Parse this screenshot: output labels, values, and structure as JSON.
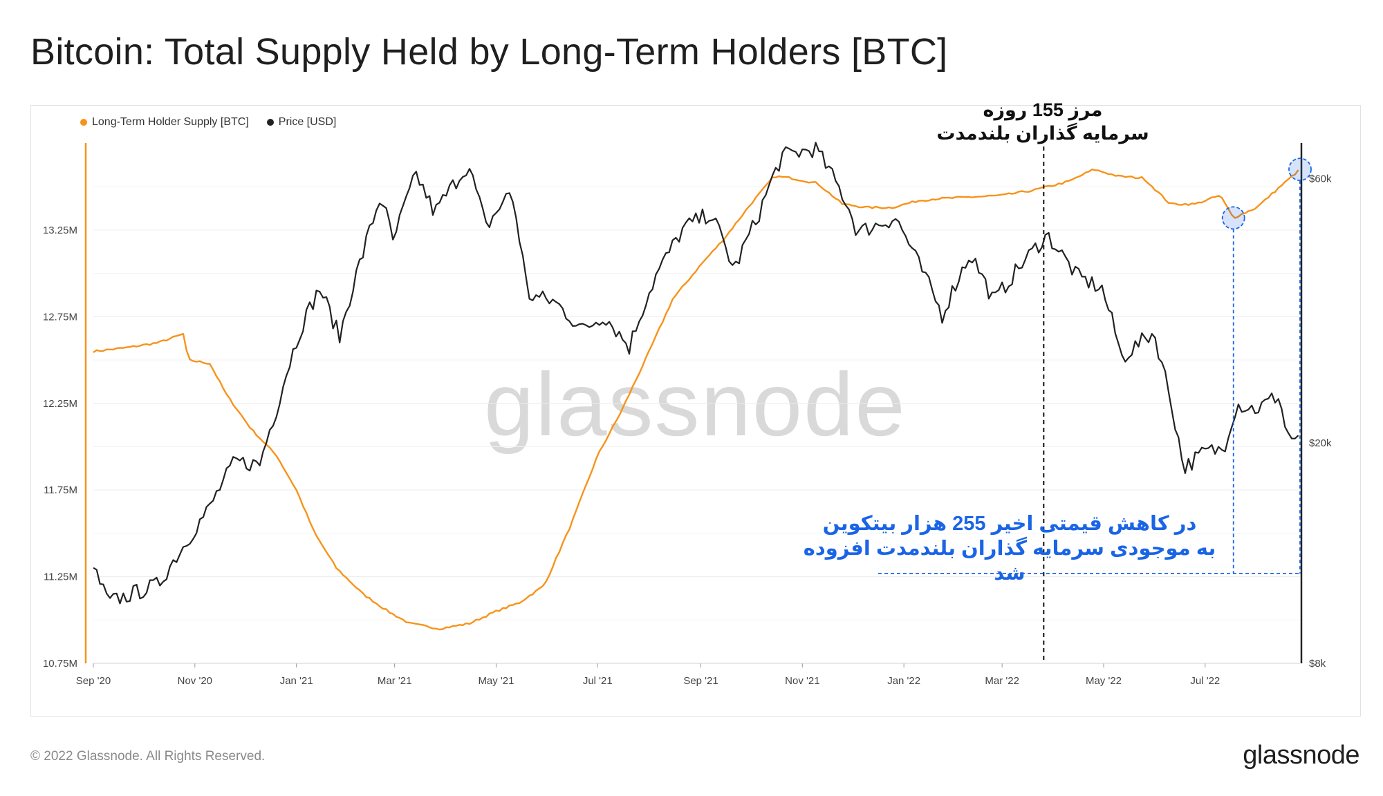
{
  "title": "Bitcoin: Total Supply Held by Long-Term Holders [BTC]",
  "footer": {
    "copyright": "© 2022 Glassnode. All Rights Reserved.",
    "logo": "glassnode"
  },
  "watermark": "glassnode",
  "annotations": {
    "boundary_line1": "مرز 155 روزه",
    "boundary_line2": "سرمایه گذاران بلندمدت",
    "increase_line1": "در کاهش قیمتی اخیر 255 هزار بیتکوین",
    "increase_line2": "به موجودی سرمایه گذاران بلندمدت افزوده شد"
  },
  "colors": {
    "supply": "#f7931a",
    "price": "#222222",
    "annotation": "#1a64e6",
    "grid": "#ececec"
  },
  "chart_data": {
    "type": "line",
    "title": "Bitcoin: Total Supply Held by Long-Term Holders [BTC]",
    "x_ticks": [
      "Sep '20",
      "Nov '20",
      "Jan '21",
      "Mar '21",
      "May '21",
      "Jul '21",
      "Sep '21",
      "Nov '21",
      "Jan '22",
      "Mar '22",
      "May '22",
      "Jul '22"
    ],
    "x_range": [
      "2020-09-01",
      "2022-08-27"
    ],
    "left_axis": {
      "label": "Long-Term Holder Supply [BTC]",
      "ticks": [
        "10.75M",
        "11.25M",
        "11.75M",
        "12.25M",
        "12.75M",
        "13.25M"
      ],
      "range": [
        10.75,
        13.76
      ]
    },
    "right_axis": {
      "label": "Price [USD]",
      "scale": "log",
      "ticks": [
        "$8k",
        "$20k",
        "$60k"
      ],
      "range": [
        8000,
        70000
      ]
    },
    "legend": [
      "Long-Term Holder Supply [BTC]",
      "Price [USD]"
    ],
    "series": [
      {
        "name": "Long-Term Holder Supply [BTC]",
        "unit": "M BTC",
        "points": [
          [
            "2020-09-01",
            12.55
          ],
          [
            "2020-09-20",
            12.57
          ],
          [
            "2020-10-10",
            12.6
          ],
          [
            "2020-10-25",
            12.65
          ],
          [
            "2020-10-28",
            12.5
          ],
          [
            "2020-11-10",
            12.48
          ],
          [
            "2020-11-20",
            12.3
          ],
          [
            "2020-12-05",
            12.1
          ],
          [
            "2020-12-20",
            11.95
          ],
          [
            "2021-01-01",
            11.75
          ],
          [
            "2021-01-12",
            11.5
          ],
          [
            "2021-01-25",
            11.3
          ],
          [
            "2021-02-10",
            11.15
          ],
          [
            "2021-02-25",
            11.05
          ],
          [
            "2021-03-10",
            10.98
          ],
          [
            "2021-03-28",
            10.95
          ],
          [
            "2021-04-15",
            10.98
          ],
          [
            "2021-05-01",
            11.05
          ],
          [
            "2021-05-15",
            11.1
          ],
          [
            "2021-05-30",
            11.2
          ],
          [
            "2021-06-15",
            11.55
          ],
          [
            "2021-07-01",
            11.95
          ],
          [
            "2021-07-15",
            12.2
          ],
          [
            "2021-08-01",
            12.55
          ],
          [
            "2021-08-15",
            12.85
          ],
          [
            "2021-09-01",
            13.05
          ],
          [
            "2021-09-15",
            13.2
          ],
          [
            "2021-10-01",
            13.4
          ],
          [
            "2021-10-15",
            13.56
          ],
          [
            "2021-10-25",
            13.55
          ],
          [
            "2021-11-10",
            13.52
          ],
          [
            "2021-11-25",
            13.4
          ],
          [
            "2021-12-10",
            13.38
          ],
          [
            "2021-12-25",
            13.38
          ],
          [
            "2022-01-10",
            13.42
          ],
          [
            "2022-01-20",
            13.43
          ],
          [
            "2022-02-10",
            13.44
          ],
          [
            "2022-03-01",
            13.45
          ],
          [
            "2022-03-20",
            13.48
          ],
          [
            "2022-04-10",
            13.53
          ],
          [
            "2022-04-25",
            13.6
          ],
          [
            "2022-05-10",
            13.56
          ],
          [
            "2022-05-25",
            13.55
          ],
          [
            "2022-06-10",
            13.4
          ],
          [
            "2022-06-25",
            13.4
          ],
          [
            "2022-07-10",
            13.45
          ],
          [
            "2022-07-18",
            13.32
          ],
          [
            "2022-08-01",
            13.38
          ],
          [
            "2022-08-15",
            13.5
          ],
          [
            "2022-08-27",
            13.6
          ]
        ]
      },
      {
        "name": "Price [USD]",
        "unit": "USD",
        "points": [
          [
            "2020-09-01",
            11900
          ],
          [
            "2020-09-10",
            10300
          ],
          [
            "2020-09-25",
            10700
          ],
          [
            "2020-10-10",
            11100
          ],
          [
            "2020-10-25",
            13000
          ],
          [
            "2020-11-10",
            15300
          ],
          [
            "2020-11-25",
            18500
          ],
          [
            "2020-12-10",
            18300
          ],
          [
            "2020-12-20",
            23000
          ],
          [
            "2021-01-05",
            33000
          ],
          [
            "2021-01-15",
            38000
          ],
          [
            "2021-01-27",
            31000
          ],
          [
            "2021-02-10",
            44000
          ],
          [
            "2021-02-21",
            56000
          ],
          [
            "2021-02-28",
            46000
          ],
          [
            "2021-03-14",
            61000
          ],
          [
            "2021-03-25",
            52000
          ],
          [
            "2021-04-14",
            63500
          ],
          [
            "2021-04-25",
            49000
          ],
          [
            "2021-05-10",
            57000
          ],
          [
            "2021-05-20",
            37000
          ],
          [
            "2021-06-05",
            36000
          ],
          [
            "2021-06-22",
            32000
          ],
          [
            "2021-07-05",
            34000
          ],
          [
            "2021-07-20",
            29800
          ],
          [
            "2021-08-05",
            40000
          ],
          [
            "2021-08-22",
            49000
          ],
          [
            "2021-09-07",
            52000
          ],
          [
            "2021-09-21",
            41000
          ],
          [
            "2021-10-05",
            51000
          ],
          [
            "2021-10-20",
            66000
          ],
          [
            "2021-11-09",
            68000
          ],
          [
            "2021-11-28",
            54000
          ],
          [
            "2021-12-04",
            48000
          ],
          [
            "2021-12-27",
            51000
          ],
          [
            "2022-01-10",
            42000
          ],
          [
            "2022-01-24",
            34000
          ],
          [
            "2022-02-10",
            44000
          ],
          [
            "2022-02-24",
            36000
          ],
          [
            "2022-03-28",
            47500
          ],
          [
            "2022-04-15",
            40000
          ],
          [
            "2022-04-30",
            38000
          ],
          [
            "2022-05-12",
            28500
          ],
          [
            "2022-05-31",
            31700
          ],
          [
            "2022-06-18",
            18000
          ],
          [
            "2022-07-01",
            19300
          ],
          [
            "2022-07-12",
            19500
          ],
          [
            "2022-07-20",
            23500
          ],
          [
            "2022-08-01",
            23000
          ],
          [
            "2022-08-14",
            24400
          ],
          [
            "2022-08-19",
            20800
          ],
          [
            "2022-08-27",
            20000
          ]
        ]
      }
    ]
  }
}
